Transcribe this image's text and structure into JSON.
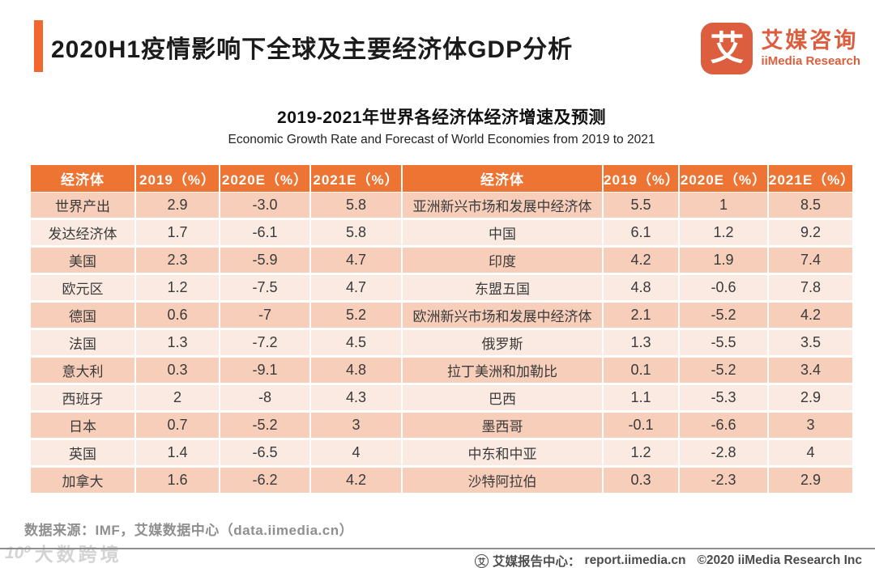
{
  "header": {
    "title": "2020H1疫情影响下全球及主要经济体GDP分析",
    "logo": {
      "glyph": "艾",
      "name_cn": "艾媒咨询",
      "name_en": "iiMedia Research"
    }
  },
  "subtitle": {
    "cn": "2019-2021年世界各经济体经济增速及预测",
    "en": "Economic Growth Rate and Forecast of World Economies from 2019 to 2021"
  },
  "table": {
    "columns": [
      "经济体",
      "2019（%）",
      "2020E（%）",
      "2021E（%）",
      "经济体",
      "2019（%）",
      "2020E（%）",
      "2021E（%）"
    ],
    "rows": [
      [
        "世界产出",
        "2.9",
        "-3.0",
        "5.8",
        "亚洲新兴市场和发展中经济体",
        "5.5",
        "1",
        "8.5"
      ],
      [
        "发达经济体",
        "1.7",
        "-6.1",
        "5.8",
        "中国",
        "6.1",
        "1.2",
        "9.2"
      ],
      [
        "美国",
        "2.3",
        "-5.9",
        "4.7",
        "印度",
        "4.2",
        "1.9",
        "7.4"
      ],
      [
        "欧元区",
        "1.2",
        "-7.5",
        "4.7",
        "东盟五国",
        "4.8",
        "-0.6",
        "7.8"
      ],
      [
        "德国",
        "0.6",
        "-7",
        "5.2",
        "欧洲新兴市场和发展中经济体",
        "2.1",
        "-5.2",
        "4.2"
      ],
      [
        "法国",
        "1.3",
        "-7.2",
        "4.5",
        "俄罗斯",
        "1.3",
        "-5.5",
        "3.5"
      ],
      [
        "意大利",
        "0.3",
        "-9.1",
        "4.8",
        "拉丁美洲和加勒比",
        "0.1",
        "-5.2",
        "3.4"
      ],
      [
        "西班牙",
        "2",
        "-8",
        "4.3",
        "巴西",
        "1.1",
        "-5.3",
        "2.9"
      ],
      [
        "日本",
        "0.7",
        "-5.2",
        "3",
        "墨西哥",
        "-0.1",
        "-6.6",
        "3"
      ],
      [
        "英国",
        "1.4",
        "-6.5",
        "4",
        "中东和中亚",
        "1.2",
        "-2.8",
        "4"
      ],
      [
        "加拿大",
        "1.6",
        "-6.2",
        "4.2",
        "沙特阿拉伯",
        "0.3",
        "-2.3",
        "2.9"
      ]
    ]
  },
  "source": {
    "text": "数据来源：IMF，艾媒数据中心（data.iimedia.cn）"
  },
  "watermark": {
    "icon": "10⁰",
    "text": "大数跨境"
  },
  "footer": {
    "logo_glyph": "艾",
    "site_label": "艾媒报告中心：",
    "site_url": "report.iimedia.cn",
    "copyright": "©2020  iiMedia Research  Inc"
  },
  "colors": {
    "accent_orange": "#F1672E",
    "table_header_orange": "#ED7433",
    "logo_orange": "#DD5E3E",
    "row_dark_pink": "#F6CEBA",
    "row_light_pink": "#FBEAE1",
    "header_text": "#FFFFFF",
    "body_text": "#3A3A3A",
    "source_gray": "#8F8F8F",
    "footer_gray": "#4C4C4C"
  },
  "chart_data": {
    "type": "table",
    "title": "2019-2021年世界各经济体经济增速及预测",
    "title_en": "Economic Growth Rate and Forecast of World Economies from 2019 to 2021",
    "columns": [
      "经济体",
      "2019（%）",
      "2020E（%）",
      "2021E（%）"
    ],
    "rows": [
      {
        "economy": "世界产出",
        "y2019": 2.9,
        "y2020e": -3.0,
        "y2021e": 5.8
      },
      {
        "economy": "发达经济体",
        "y2019": 1.7,
        "y2020e": -6.1,
        "y2021e": 5.8
      },
      {
        "economy": "美国",
        "y2019": 2.3,
        "y2020e": -5.9,
        "y2021e": 4.7
      },
      {
        "economy": "欧元区",
        "y2019": 1.2,
        "y2020e": -7.5,
        "y2021e": 4.7
      },
      {
        "economy": "德国",
        "y2019": 0.6,
        "y2020e": -7,
        "y2021e": 5.2
      },
      {
        "economy": "法国",
        "y2019": 1.3,
        "y2020e": -7.2,
        "y2021e": 4.5
      },
      {
        "economy": "意大利",
        "y2019": 0.3,
        "y2020e": -9.1,
        "y2021e": 4.8
      },
      {
        "economy": "西班牙",
        "y2019": 2,
        "y2020e": -8,
        "y2021e": 4.3
      },
      {
        "economy": "日本",
        "y2019": 0.7,
        "y2020e": -5.2,
        "y2021e": 3
      },
      {
        "economy": "英国",
        "y2019": 1.4,
        "y2020e": -6.5,
        "y2021e": 4
      },
      {
        "economy": "加拿大",
        "y2019": 1.6,
        "y2020e": -6.2,
        "y2021e": 4.2
      },
      {
        "economy": "亚洲新兴市场和发展中经济体",
        "y2019": 5.5,
        "y2020e": 1,
        "y2021e": 8.5
      },
      {
        "economy": "中国",
        "y2019": 6.1,
        "y2020e": 1.2,
        "y2021e": 9.2
      },
      {
        "economy": "印度",
        "y2019": 4.2,
        "y2020e": 1.9,
        "y2021e": 7.4
      },
      {
        "economy": "东盟五国",
        "y2019": 4.8,
        "y2020e": -0.6,
        "y2021e": 7.8
      },
      {
        "economy": "欧洲新兴市场和发展中经济体",
        "y2019": 2.1,
        "y2020e": -5.2,
        "y2021e": 4.2
      },
      {
        "economy": "俄罗斯",
        "y2019": 1.3,
        "y2020e": -5.5,
        "y2021e": 3.5
      },
      {
        "economy": "拉丁美洲和加勒比",
        "y2019": 0.1,
        "y2020e": -5.2,
        "y2021e": 3.4
      },
      {
        "economy": "巴西",
        "y2019": 1.1,
        "y2020e": -5.3,
        "y2021e": 2.9
      },
      {
        "economy": "墨西哥",
        "y2019": -0.1,
        "y2020e": -6.6,
        "y2021e": 3
      },
      {
        "economy": "中东和中亚",
        "y2019": 1.2,
        "y2020e": -2.8,
        "y2021e": 4
      },
      {
        "economy": "沙特阿拉伯",
        "y2019": 0.3,
        "y2020e": -2.3,
        "y2021e": 2.9
      }
    ]
  }
}
